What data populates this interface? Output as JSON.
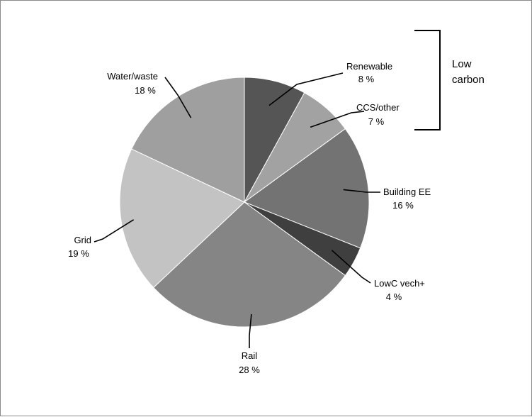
{
  "chart_data": {
    "type": "pie",
    "slices": [
      {
        "label": "Renewable",
        "value": 8,
        "value_label": "8 %",
        "color": "#555555"
      },
      {
        "label": "CCS/other",
        "value": 7,
        "value_label": "7 %",
        "color": "#a2a2a2"
      },
      {
        "label": "Building EE",
        "value": 16,
        "value_label": "16 %",
        "color": "#737373"
      },
      {
        "label": "LowC vech+",
        "value": 4,
        "value_label": "4 %",
        "color": "#3f3f3f"
      },
      {
        "label": "Rail",
        "value": 28,
        "value_label": "28 %",
        "color": "#858585"
      },
      {
        "label": "Grid",
        "value": 19,
        "value_label": "19 %",
        "color": "#c3c3c3"
      },
      {
        "label": "Water/waste",
        "value": 18,
        "value_label": "18 %",
        "color": "#9f9f9f"
      }
    ],
    "start_angle": "12 o'clock",
    "direction": "clockwise",
    "annotation": {
      "text_lines": [
        "Low",
        "carbon"
      ],
      "groups": [
        "Renewable",
        "CCS/other"
      ]
    }
  }
}
